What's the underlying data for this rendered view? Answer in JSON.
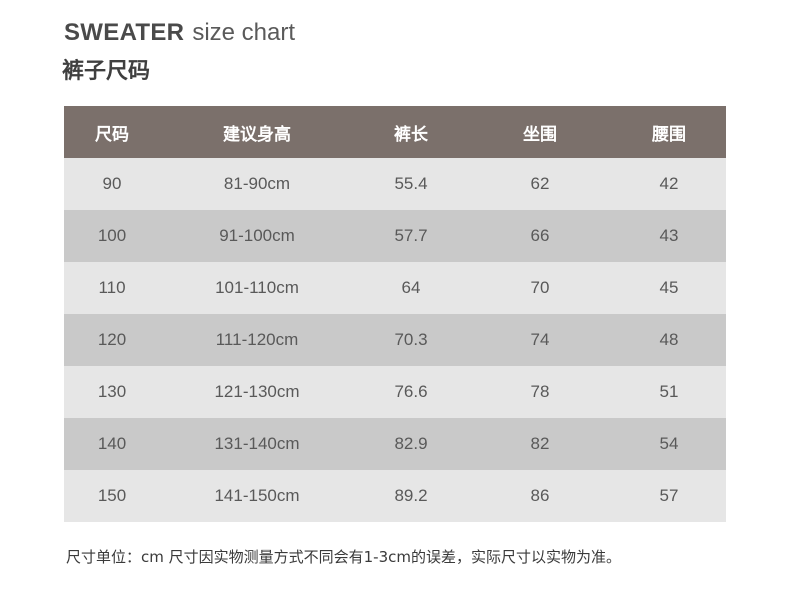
{
  "header": {
    "title_bold": "SWEATER",
    "title_light": "size chart",
    "subtitle": "裤子尺码"
  },
  "table": {
    "columns": [
      "尺码",
      "建议身高",
      "裤长",
      "坐围",
      "腰围"
    ],
    "rows": [
      [
        "90",
        "81-90cm",
        "55.4",
        "62",
        "42"
      ],
      [
        "100",
        "91-100cm",
        "57.7",
        "66",
        "43"
      ],
      [
        "110",
        "101-110cm",
        "64",
        "70",
        "45"
      ],
      [
        "120",
        "111-120cm",
        "70.3",
        "74",
        "48"
      ],
      [
        "130",
        "121-130cm",
        "76.6",
        "78",
        "51"
      ],
      [
        "140",
        "131-140cm",
        "82.9",
        "82",
        "54"
      ],
      [
        "150",
        "141-150cm",
        "89.2",
        "86",
        "57"
      ]
    ]
  },
  "footnote": "尺寸单位：cm  尺寸因实物测量方式不同会有1-3cm的误差，实际尺寸以实物为准。",
  "colors": {
    "header_bg": "#7b706b",
    "row_light": "#e6e6e6",
    "row_dark": "#c9c9c9"
  }
}
